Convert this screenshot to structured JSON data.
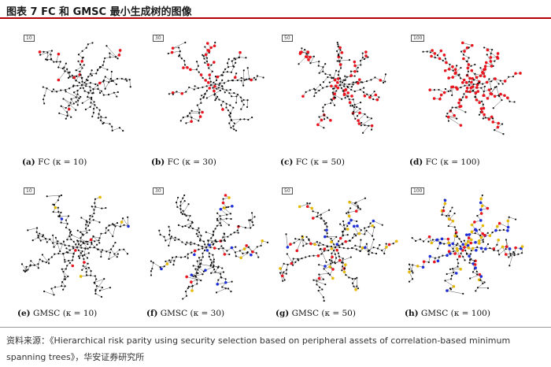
{
  "header": {
    "title": "图表 7 FC 和 GMSC 最小生成树的图像"
  },
  "panels": [
    {
      "tag": "10",
      "letter": "(a)",
      "method": "FC",
      "kappa": "(κ = 10)",
      "kind": "fc",
      "colored": 10
    },
    {
      "tag": "30",
      "letter": "(b)",
      "method": "FC",
      "kappa": "(κ = 30)",
      "kind": "fc",
      "colored": 30
    },
    {
      "tag": "50",
      "letter": "(c)",
      "method": "FC",
      "kappa": "(κ = 50)",
      "kind": "fc",
      "colored": 50
    },
    {
      "tag": "100",
      "letter": "(d)",
      "method": "FC",
      "kappa": "(κ = 100)",
      "kind": "fc",
      "colored": 100
    },
    {
      "tag": "10",
      "letter": "(e)",
      "method": "GMSC",
      "kappa": "(κ = 10)",
      "kind": "gmsc",
      "colored": 10
    },
    {
      "tag": "30",
      "letter": "(f)",
      "method": "GMSC",
      "kappa": "(κ = 30)",
      "kind": "gmsc",
      "colored": 30
    },
    {
      "tag": "50",
      "letter": "(g)",
      "method": "GMSC",
      "kappa": "(κ = 50)",
      "kind": "gmsc",
      "colored": 50
    },
    {
      "tag": "100",
      "letter": "(h)",
      "method": "GMSC",
      "kappa": "(κ = 100)",
      "kind": "gmsc",
      "colored": 100
    }
  ],
  "colors": {
    "node": "#111111",
    "edge": "#555555",
    "fc_highlight": "#e8141e",
    "gmsc_highlight": [
      "#e8141e",
      "#1f2fd8",
      "#e6b800"
    ],
    "rule": "#b30000"
  },
  "source": {
    "text": "资料来源：《Hierarchical risk parity using security selection based on peripheral    assets of correlation-based minimum spanning trees》，华安证券研究所"
  }
}
